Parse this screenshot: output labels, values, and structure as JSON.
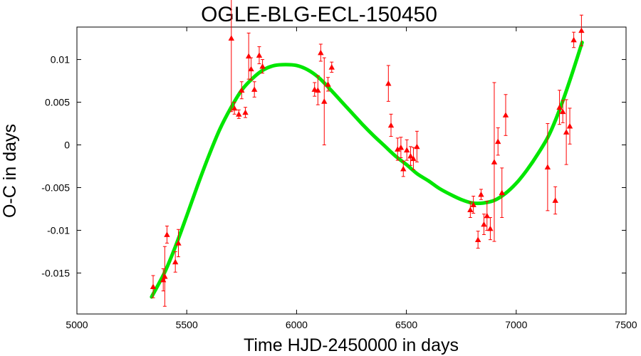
{
  "chart_data": {
    "type": "scatter",
    "title": "OGLE-BLG-ECL-150450",
    "xlabel": "Time HJD-2450000 in days",
    "ylabel": "O-C in days",
    "xlim": [
      5000,
      7500
    ],
    "ylim": [
      -0.0198,
      0.0138
    ],
    "xticks": [
      5000,
      5500,
      6000,
      6500,
      7000,
      7500
    ],
    "xtick_labels": [
      "5000",
      "5500",
      "6000",
      "6500",
      "7000",
      "7500"
    ],
    "yticks": [
      -0.015,
      -0.01,
      -0.005,
      0,
      0.005,
      0.01
    ],
    "ytick_labels": [
      "-0.015",
      "-0.01",
      "-0.005",
      "0",
      "0.005",
      "0.01"
    ],
    "grid": false,
    "series": [
      {
        "kind": "points_with_errorbars",
        "marker": "triangle",
        "color": "#ff0000",
        "points": [
          {
            "x": 5347,
            "y": -0.0166,
            "err": 0.0013
          },
          {
            "x": 5393,
            "y": -0.0158,
            "err": 0.0013
          },
          {
            "x": 5400,
            "y": -0.0154,
            "err": 0.0035
          },
          {
            "x": 5410,
            "y": -0.0105,
            "err": 0.001
          },
          {
            "x": 5448,
            "y": -0.0137,
            "err": 0.0012
          },
          {
            "x": 5462,
            "y": -0.0115,
            "err": 0.0016
          },
          {
            "x": 5703,
            "y": 0.0125,
            "err": 0.0086
          },
          {
            "x": 5717,
            "y": 0.0043,
            "err": 0.0007
          },
          {
            "x": 5737,
            "y": 0.0036,
            "err": 0.0005
          },
          {
            "x": 5750,
            "y": 0.0064,
            "err": 0.001
          },
          {
            "x": 5767,
            "y": 0.0038,
            "err": 0.0006
          },
          {
            "x": 5782,
            "y": 0.0104,
            "err": 0.0027
          },
          {
            "x": 5793,
            "y": 0.0089,
            "err": 0.0013
          },
          {
            "x": 5808,
            "y": 0.0065,
            "err": 0.0009
          },
          {
            "x": 5830,
            "y": 0.0105,
            "err": 0.001
          },
          {
            "x": 5845,
            "y": 0.0092,
            "err": 0.0008
          },
          {
            "x": 6082,
            "y": 0.0065,
            "err": 0.0008
          },
          {
            "x": 6097,
            "y": 0.0064,
            "err": 0.0017
          },
          {
            "x": 6110,
            "y": 0.0108,
            "err": 0.001
          },
          {
            "x": 6126,
            "y": 0.0051,
            "err": 0.0051
          },
          {
            "x": 6143,
            "y": 0.0071,
            "err": 0.0008
          },
          {
            "x": 6160,
            "y": 0.0091,
            "err": 0.0006
          },
          {
            "x": 6418,
            "y": 0.0072,
            "err": 0.0021
          },
          {
            "x": 6430,
            "y": 0.0023,
            "err": 0.0013
          },
          {
            "x": 6460,
            "y": -0.0005,
            "err": 0.0013
          },
          {
            "x": 6475,
            "y": -0.0003,
            "err": 0.0012
          },
          {
            "x": 6486,
            "y": -0.0028,
            "err": 0.0009
          },
          {
            "x": 6502,
            "y": -0.0006,
            "err": 0.0012
          },
          {
            "x": 6519,
            "y": -0.0013,
            "err": 0.0011
          },
          {
            "x": 6532,
            "y": -0.0016,
            "err": 0.0013
          },
          {
            "x": 6548,
            "y": -0.0002,
            "err": 0.0018
          },
          {
            "x": 6791,
            "y": -0.0076,
            "err": 0.0009
          },
          {
            "x": 6805,
            "y": -0.007,
            "err": 0.001
          },
          {
            "x": 6826,
            "y": -0.0111,
            "err": 0.001
          },
          {
            "x": 6840,
            "y": -0.0058,
            "err": 0.0006
          },
          {
            "x": 6853,
            "y": -0.0093,
            "err": 0.0012
          },
          {
            "x": 6867,
            "y": -0.0083,
            "err": 0.0017
          },
          {
            "x": 6882,
            "y": -0.0098,
            "err": 0.0013
          },
          {
            "x": 6900,
            "y": -0.002,
            "err": 0.0093
          },
          {
            "x": 6917,
            "y": 0.0004,
            "err": 0.0016
          },
          {
            "x": 6935,
            "y": -0.0056,
            "err": 0.0029
          },
          {
            "x": 6952,
            "y": 0.0035,
            "err": 0.0024
          },
          {
            "x": 7143,
            "y": -0.0026,
            "err": 0.0051
          },
          {
            "x": 7178,
            "y": -0.0065,
            "err": 0.0016
          },
          {
            "x": 7197,
            "y": 0.0044,
            "err": 0.002
          },
          {
            "x": 7212,
            "y": 0.0039,
            "err": 0.0013
          },
          {
            "x": 7228,
            "y": 0.0015,
            "err": 0.0038
          },
          {
            "x": 7244,
            "y": 0.0022,
            "err": 0.0021
          },
          {
            "x": 7262,
            "y": 0.0123,
            "err": 0.0009
          },
          {
            "x": 7297,
            "y": 0.0134,
            "err": 0.0018
          }
        ]
      },
      {
        "kind": "fit_curve",
        "color": "#00e600",
        "x": [
          5340,
          5400,
          5450,
          5500,
          5550,
          5600,
          5650,
          5700,
          5750,
          5800,
          5850,
          5900,
          5950,
          6000,
          6050,
          6100,
          6150,
          6200,
          6250,
          6300,
          6350,
          6400,
          6450,
          6500,
          6550,
          6600,
          6650,
          6700,
          6750,
          6800,
          6850,
          6900,
          6950,
          7000,
          7050,
          7100,
          7150,
          7200,
          7250,
          7300
        ],
        "y": [
          -0.0178,
          -0.0149,
          -0.0118,
          -0.0083,
          -0.0047,
          -0.0013,
          0.0018,
          0.0043,
          0.0064,
          0.0078,
          0.0088,
          0.0093,
          0.0094,
          0.0093,
          0.0088,
          0.0079,
          0.0066,
          0.0052,
          0.0038,
          0.0024,
          0.0011,
          -0.0001,
          -0.0013,
          -0.0023,
          -0.0034,
          -0.0042,
          -0.0051,
          -0.0058,
          -0.0064,
          -0.0068,
          -0.0068,
          -0.0065,
          -0.0057,
          -0.0045,
          -0.0029,
          -0.001,
          0.0012,
          0.0043,
          0.008,
          0.012
        ]
      }
    ]
  }
}
